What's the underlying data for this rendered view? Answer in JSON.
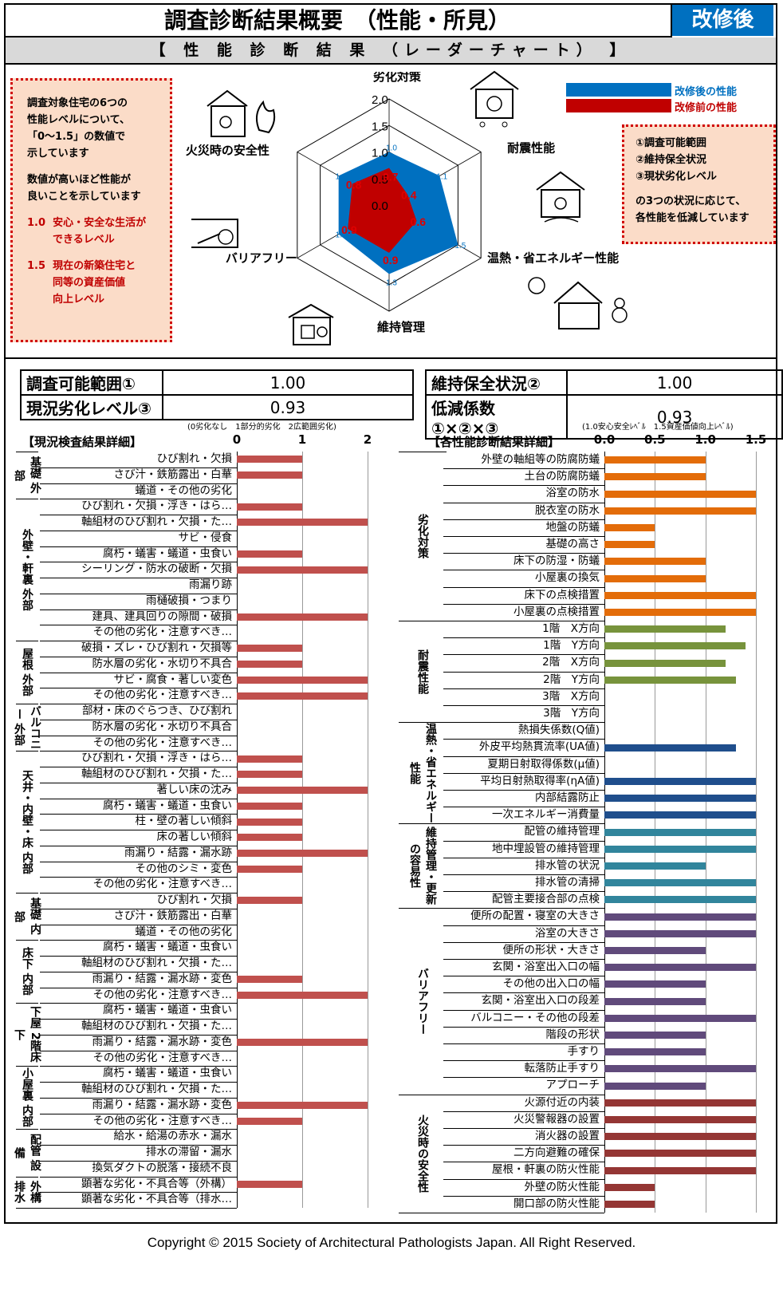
{
  "header": {
    "title": "調査診断結果概要　（性能・所見）",
    "badge": "改修後",
    "subtitle": "【 性 能 診 断 結 果 （レーダーチャート） 】"
  },
  "left_note": {
    "line1": "調査対象住宅の6つの",
    "line2": "性能レベルについて、",
    "line3": "「0～1.5」の数値で",
    "line4": "示しています",
    "line5": "数値が高いほど性能が",
    "line6": "良いことを示しています",
    "item1_num": "1.0",
    "item1_a": "安心・安全な生活が",
    "item1_b": "できるレベル",
    "item2_num": "1.5",
    "item2_a": "現在の新築住宅と",
    "item2_b": "同等の資産価値",
    "item2_c": "向上レベル"
  },
  "right_note": {
    "l1": "①調査可能範囲",
    "l2": "②維持保全状況",
    "l3": "③現状劣化レベル",
    "l4": "の3つの状況に応じて、",
    "l5": "各性能を低減しています"
  },
  "legend": {
    "after": "改修後の性能",
    "before": "改修前の性能",
    "after_color": "#0070c0",
    "before_color": "#c00000"
  },
  "radar": {
    "axes": [
      "劣化対策",
      "耐震性能",
      "温熱・省エネルギー性能",
      "維持管理",
      "バリアフリー",
      "火災時の安全性"
    ],
    "ring_labels": [
      "2.0",
      "1.5",
      "1.0",
      "0.5",
      "0.0"
    ],
    "after": [
      1.0,
      1.1,
      1.5,
      1.3,
      1.1,
      1.1
    ],
    "after_labels": [
      "1.0",
      "1.1",
      "1.5",
      "1.3",
      "1.1",
      "1.1"
    ],
    "before": [
      0.7,
      0.4,
      0.6,
      0.9,
      0.9,
      0.8
    ],
    "before_labels": [
      "0.7",
      "0.4",
      "0.6",
      "0.9",
      "0.9",
      "0.8"
    ]
  },
  "info_left": {
    "r1_label": "調査可能範囲①",
    "r1_value": "1.00",
    "r2_label": "現況劣化レベル③",
    "r2_value": "0.93"
  },
  "info_right": {
    "r1_label": "維持保全状況②",
    "r1_value": "1.00",
    "r2_label": "低減係数①×②×③",
    "r2_value": "0.93"
  },
  "left_chart": {
    "title": "【現況検査結果詳細】",
    "scale_note": "(0劣化なし　1部分的劣化　2広範囲劣化)",
    "ticks": [
      "0",
      "1",
      "2"
    ],
    "bar_color": "#c0504d",
    "groups": [
      {
        "name": "基礎 外部",
        "items": [
          [
            "ひび割れ・欠損",
            1
          ],
          [
            "さび汁・鉄筋露出・白華",
            1
          ],
          [
            "蟻道・その他の劣化",
            0
          ]
        ]
      },
      {
        "name": "外壁・軒裏 外部",
        "items": [
          [
            "ひび割れ・欠損・浮き・はら…",
            1
          ],
          [
            "軸組材のひび割れ・欠損・た…",
            2
          ],
          [
            "サビ・侵食",
            0
          ],
          [
            "腐朽・蟻害・蟻道・虫食い",
            1
          ],
          [
            "シーリング・防水の破断・欠損",
            2
          ],
          [
            "雨漏り跡",
            0
          ],
          [
            "雨樋破損・つまり",
            0
          ],
          [
            "建具、建具回りの隙間・破損",
            2
          ],
          [
            "その他の劣化・注意すべき…",
            0
          ]
        ]
      },
      {
        "name": "屋根 外部",
        "items": [
          [
            "破損・ズレ・ひび割れ・欠損等",
            1
          ],
          [
            "防水層の劣化・水切り不具合",
            1
          ],
          [
            "サビ・腐食・著しい変色",
            2
          ],
          [
            "その他の劣化・注意すべき…",
            2
          ]
        ]
      },
      {
        "name": "バルコニー 外部",
        "items": [
          [
            "部材・床のぐらつき、ひび割れ",
            0
          ],
          [
            "防水層の劣化・水切り不具合",
            0
          ],
          [
            "その他の劣化・注意すべき…",
            0
          ]
        ]
      },
      {
        "name": "天井・内壁・床 内部",
        "items": [
          [
            "ひび割れ・欠損・浮き・はら…",
            1
          ],
          [
            "軸組材のひび割れ・欠損・た…",
            1
          ],
          [
            "著しい床の沈み",
            2
          ],
          [
            "腐朽・蟻害・蟻道・虫食い",
            1
          ],
          [
            "柱・壁の著しい傾斜",
            1
          ],
          [
            "床の著しい傾斜",
            1
          ],
          [
            "雨漏り・結露・漏水跡",
            2
          ],
          [
            "その他のシミ・変色",
            1
          ],
          [
            "その他の劣化・注意すべき…",
            0
          ]
        ]
      },
      {
        "name": "基礎 内部",
        "items": [
          [
            "ひび割れ・欠損",
            1
          ],
          [
            "さび汁・鉄筋露出・白華",
            0
          ],
          [
            "蟻道・その他の劣化",
            0
          ]
        ]
      },
      {
        "name": "床下 内部",
        "items": [
          [
            "腐朽・蟻害・蟻道・虫食い",
            0
          ],
          [
            "軸組材のひび割れ・欠損・た…",
            0
          ],
          [
            "雨漏り・結露・漏水跡・変色",
            1
          ],
          [
            "その他の劣化・注意すべき…",
            2
          ]
        ]
      },
      {
        "name": "下屋 2階床下",
        "items": [
          [
            "腐朽・蟻害・蟻道・虫食い",
            0
          ],
          [
            "軸組材のひび割れ・欠損・た…",
            0
          ],
          [
            "雨漏り・結露・漏水跡・変色",
            2
          ],
          [
            "その他の劣化・注意すべき…",
            0
          ]
        ]
      },
      {
        "name": "小屋裏 内部",
        "items": [
          [
            "腐朽・蟻害・蟻道・虫食い",
            0
          ],
          [
            "軸組材のひび割れ・欠損・た…",
            0
          ],
          [
            "雨漏り・結露・漏水跡・変色",
            2
          ],
          [
            "その他の劣化・注意すべき…",
            1
          ]
        ]
      },
      {
        "name": "配管 設備",
        "items": [
          [
            "給水・給湯の赤水・漏水",
            0
          ],
          [
            "排水の滞留・漏水",
            0
          ],
          [
            "換気ダクトの脱落・接続不良",
            0
          ]
        ]
      },
      {
        "name": "外構 排水",
        "items": [
          [
            "顕著な劣化・不具合等（外構）",
            1
          ],
          [
            "顕著な劣化・不具合等（排水…",
            0
          ]
        ]
      }
    ]
  },
  "right_chart": {
    "title": "【各性能診断結果詳細】",
    "scale_note": "(1.0安心安全ﾚﾍﾞﾙ　1.5資産価値向上ﾚﾍﾞﾙ)",
    "ticks": [
      "0.0",
      "0.5",
      "1.0",
      "1.5"
    ],
    "groups": [
      {
        "name": "劣化対策",
        "color": "#e36c09",
        "items": [
          [
            "外壁の軸組等の防腐防蟻",
            1.0
          ],
          [
            "土台の防腐防蟻",
            1.0
          ],
          [
            "浴室の防水",
            1.5
          ],
          [
            "脱衣室の防水",
            1.5
          ],
          [
            "地盤の防蟻",
            0.5
          ],
          [
            "基礎の高さ",
            0.5
          ],
          [
            "床下の防湿・防蟻",
            1.0
          ],
          [
            "小屋裏の換気",
            1.0
          ],
          [
            "床下の点検措置",
            1.5
          ],
          [
            "小屋裏の点検措置",
            1.5
          ]
        ]
      },
      {
        "name": "耐震性能",
        "color": "#77933c",
        "items": [
          [
            "1階　X方向",
            1.2
          ],
          [
            "1階　Y方向",
            1.4
          ],
          [
            "2階　X方向",
            1.2
          ],
          [
            "2階　Y方向",
            1.3
          ],
          [
            "3階　X方向",
            0
          ],
          [
            "3階　Y方向",
            0
          ]
        ]
      },
      {
        "name": "温熱・省エネルギー性能",
        "color": "#1f4e8c",
        "items": [
          [
            "熱損失係数(Q値)",
            0
          ],
          [
            "外皮平均熱貫流率(UA値)",
            1.3
          ],
          [
            "夏期日射取得係数(μ値)",
            0
          ],
          [
            "平均日射熱取得率(ηA値)",
            1.5
          ],
          [
            "内部結露防止",
            1.5
          ],
          [
            "一次エネルギー消費量",
            1.5
          ]
        ]
      },
      {
        "name": "維持管理・更新の容易性",
        "color": "#31859c",
        "items": [
          [
            "配管の維持管理",
            1.5
          ],
          [
            "地中埋設管の維持管理",
            1.5
          ],
          [
            "排水管の状況",
            1.0
          ],
          [
            "排水管の清掃",
            1.5
          ],
          [
            "配管主要接合部の点検",
            1.5
          ]
        ]
      },
      {
        "name": "バリアフリー",
        "color": "#604a7b",
        "items": [
          [
            "便所の配置・寝室の大きさ",
            1.5
          ],
          [
            "浴室の大きさ",
            1.5
          ],
          [
            "便所の形状・大きさ",
            1.0
          ],
          [
            "玄関・浴室出入口の幅",
            1.5
          ],
          [
            "その他の出入口の幅",
            1.0
          ],
          [
            "玄関・浴室出入口の段差",
            1.0
          ],
          [
            "バルコニー・その他の段差",
            1.5
          ],
          [
            "階段の形状",
            1.0
          ],
          [
            "手すり",
            1.0
          ],
          [
            "転落防止手すり",
            1.5
          ],
          [
            "アプローチ",
            1.0
          ]
        ]
      },
      {
        "name": "火災時の安全性",
        "color": "#943634",
        "items": [
          [
            "火源付近の内装",
            1.5
          ],
          [
            "火災警報器の設置",
            1.5
          ],
          [
            "消火器の設置",
            1.5
          ],
          [
            "二方向避難の確保",
            1.5
          ],
          [
            "屋根・軒裏の防火性能",
            1.5
          ],
          [
            "外壁の防火性能",
            0.5
          ],
          [
            "開口部の防火性能",
            0.5
          ]
        ]
      }
    ]
  },
  "footer": {
    "copyright": "Copyright © 2015 Society of Architectural Pathologists Japan. All Right Reserved."
  }
}
